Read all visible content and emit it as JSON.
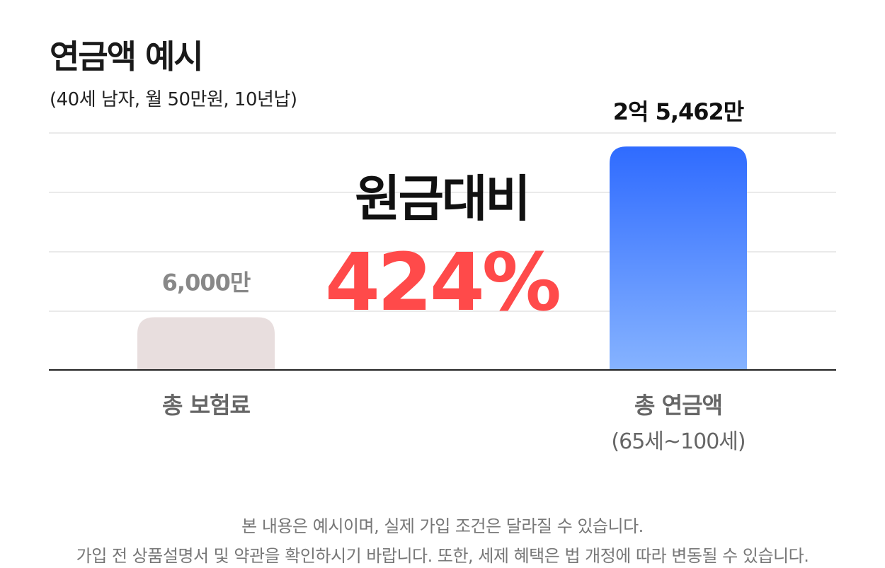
{
  "title": "연금액 예시",
  "subtitle": "(40세 남자, 월 50만원, 10년납)",
  "chart_data": {
    "type": "bar",
    "categories": [
      "총 보험료",
      "총 연금액"
    ],
    "category_sublabels": [
      "",
      "(65세~100세)"
    ],
    "values": [
      6000,
      25462
    ],
    "value_labels": [
      "6,000만",
      "2억 5,462만"
    ],
    "ylim": [
      0,
      27000
    ],
    "grid": true,
    "bar_colors": [
      "#e8dede",
      "#2f6bff"
    ],
    "bar_gradient_end": "#86b3ff",
    "callout": {
      "line1": "원금대비",
      "line2": "424%",
      "line2_color": "#ff4a4a"
    }
  },
  "footnotes": [
    "본 내용은 예시이며, 실제 가입 조건은 달라질 수 있습니다.",
    "가입 전 상품설명서 및 약관을 확인하시기 바랍니다. 또한, 세제 혜택은 법 개정에 따라 변동될 수 있습니다."
  ]
}
